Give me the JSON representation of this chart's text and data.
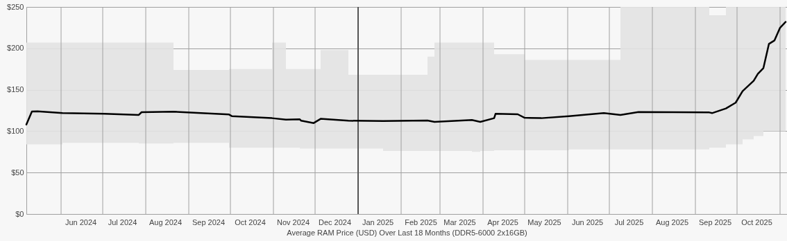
{
  "chart_data": {
    "type": "line",
    "xlabel": "Average RAM Price (USD) Over Last 18 Months (DDR5-6000 2x16GB)",
    "xlim": [
      "2024-05-07",
      "2025-11-06"
    ],
    "xticks": [
      {
        "value": "2024-06-01",
        "label": null
      },
      {
        "value": "2024-06-15",
        "label": "Jun 2024"
      },
      {
        "value": "2024-07-01",
        "label": null
      },
      {
        "value": "2024-07-15",
        "label": "Jul 2024"
      },
      {
        "value": "2024-08-01",
        "label": null
      },
      {
        "value": "2024-08-15",
        "label": "Aug 2024"
      },
      {
        "value": "2024-09-01",
        "label": null
      },
      {
        "value": "2024-09-15",
        "label": "Sep 2024"
      },
      {
        "value": "2024-10-01",
        "label": null
      },
      {
        "value": "2024-10-15",
        "label": "Oct 2024"
      },
      {
        "value": "2024-11-01",
        "label": null
      },
      {
        "value": "2024-11-15",
        "label": "Nov 2024"
      },
      {
        "value": "2024-12-01",
        "label": null
      },
      {
        "value": "2024-12-15",
        "label": "Dec 2024"
      },
      {
        "value": "2025-01-15",
        "label": "Jan 2025"
      },
      {
        "value": "2025-02-01",
        "label": null
      },
      {
        "value": "2025-02-15",
        "label": "Feb 2025"
      },
      {
        "value": "2025-03-01",
        "label": null
      },
      {
        "value": "2025-03-15",
        "label": "Mar 2025"
      },
      {
        "value": "2025-04-01",
        "label": null
      },
      {
        "value": "2025-04-15",
        "label": "Apr 2025"
      },
      {
        "value": "2025-05-01",
        "label": null
      },
      {
        "value": "2025-05-15",
        "label": "May 2025"
      },
      {
        "value": "2025-06-01",
        "label": null
      },
      {
        "value": "2025-06-15",
        "label": "Jun 2025"
      },
      {
        "value": "2025-07-01",
        "label": null
      },
      {
        "value": "2025-07-15",
        "label": "Jul 2025"
      },
      {
        "value": "2025-08-01",
        "label": null
      },
      {
        "value": "2025-08-15",
        "label": "Aug 2025"
      },
      {
        "value": "2025-09-01",
        "label": null
      },
      {
        "value": "2025-09-15",
        "label": "Sep 2025"
      },
      {
        "value": "2025-10-01",
        "label": null
      },
      {
        "value": "2025-10-15",
        "label": "Oct 2025"
      },
      {
        "value": "2025-11-01",
        "label": null
      }
    ],
    "ylim": [
      0,
      250
    ],
    "yticks": [
      {
        "value": 0,
        "label": "$0"
      },
      {
        "value": 50,
        "label": "$50"
      },
      {
        "value": 100,
        "label": "$100"
      },
      {
        "value": 150,
        "label": "$150"
      },
      {
        "value": 200,
        "label": "$200"
      },
      {
        "value": 250,
        "label": "$250"
      }
    ],
    "grid": true,
    "marker": "none",
    "line_style": "solid",
    "ref_lines": [
      {
        "axis": "x",
        "value": "2025-01-01",
        "color": "#555555"
      }
    ],
    "series": [
      {
        "color": "#000000",
        "x": [
          "2024-05-07",
          "2024-05-11",
          "2024-05-15",
          "2024-06-02",
          "2024-07-02",
          "2024-07-27",
          "2024-07-29",
          "2024-08-21",
          "2024-09-30",
          "2024-10-02",
          "2024-10-31",
          "2024-11-10",
          "2024-11-20",
          "2024-11-21",
          "2024-11-30",
          "2024-12-05",
          "2024-12-25",
          "2025-01-19",
          "2025-02-20",
          "2025-02-25",
          "2025-03-24",
          "2025-03-30",
          "2025-04-09",
          "2025-04-10",
          "2025-04-26",
          "2025-05-01",
          "2025-05-13",
          "2025-06-02",
          "2025-06-27",
          "2025-07-09",
          "2025-07-22",
          "2025-09-11",
          "2025-09-13",
          "2025-09-23",
          "2025-09-30",
          "2025-10-05",
          "2025-10-13",
          "2025-10-16",
          "2025-10-20",
          "2025-10-24",
          "2025-10-28",
          "2025-11-01",
          "2025-11-05"
        ],
        "values": [
          108,
          123.7,
          124,
          121.8,
          121,
          119.6,
          122.9,
          123.5,
          120.1,
          118.2,
          115.7,
          114,
          114.3,
          112.6,
          109.8,
          114.9,
          112.6,
          112.3,
          112.9,
          111.2,
          113.5,
          111.2,
          115.7,
          121,
          120.4,
          116.2,
          115.7,
          118.2,
          121.8,
          119.6,
          123.2,
          122.6,
          121.8,
          127.4,
          134.4,
          148.3,
          160.8,
          169.2,
          176.2,
          205.4,
          209.6,
          224.9,
          231.9
        ],
        "lower": [
          84,
          84,
          84,
          86,
          86,
          85,
          85,
          86,
          80,
          80,
          80,
          80,
          79,
          79,
          79,
          79,
          79,
          76,
          76,
          76,
          75,
          76,
          77,
          77,
          77,
          77,
          77,
          78,
          78,
          78,
          78,
          80,
          80,
          84,
          84,
          90,
          94,
          94,
          100,
          100,
          100,
          100,
          100
        ],
        "upper": [
          207,
          207,
          207,
          207,
          207,
          207,
          207,
          174,
          175,
          175,
          207,
          175,
          175,
          175,
          175,
          198,
          168,
          168,
          190,
          207,
          207,
          207,
          193,
          193,
          193,
          186,
          186,
          186,
          186,
          250,
          250,
          240,
          240,
          250,
          250,
          250,
          250,
          250,
          250,
          250,
          250,
          250,
          250
        ]
      }
    ]
  }
}
